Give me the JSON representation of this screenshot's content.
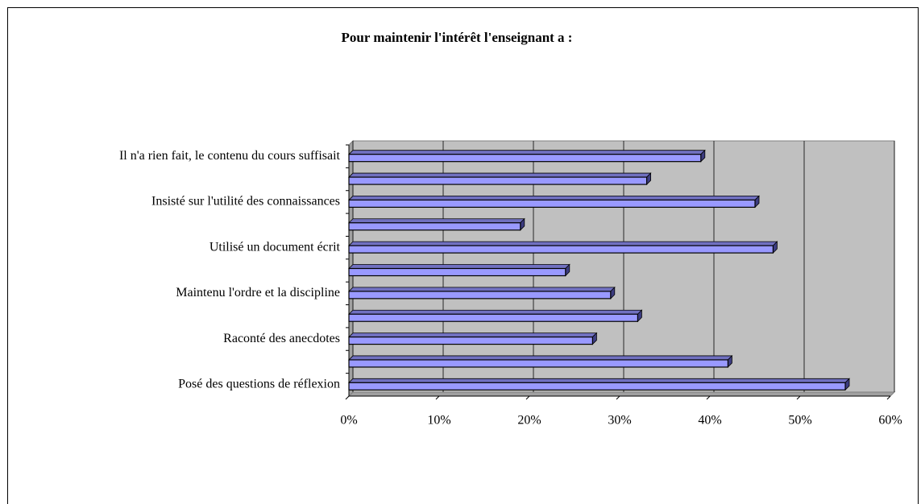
{
  "chart_data": {
    "type": "bar",
    "orientation": "horizontal",
    "title": "Pour maintenir l'intérêt l'enseignant a :",
    "categories": [
      "Il n'a rien fait, le contenu du cours suffisait",
      null,
      "Insisté sur l'utilité des connaissances",
      null,
      "Utilisé un document écrit",
      null,
      "Maintenu l'ordre et la discipline",
      null,
      "Raconté des anecdotes",
      null,
      "Posé des questions de réflexion"
    ],
    "values": [
      39,
      33,
      45,
      19,
      47,
      24,
      29,
      32,
      27,
      42,
      55
    ],
    "color": "#9999ff",
    "xlim": [
      0,
      60
    ],
    "xticks": [
      {
        "value": 0,
        "label": "0%"
      },
      {
        "value": 10,
        "label": "10%"
      },
      {
        "value": 20,
        "label": "20%"
      },
      {
        "value": 30,
        "label": "30%"
      },
      {
        "value": 40,
        "label": "40%"
      },
      {
        "value": 50,
        "label": "50%"
      },
      {
        "value": 60,
        "label": "60%"
      }
    ],
    "grid": true
  }
}
